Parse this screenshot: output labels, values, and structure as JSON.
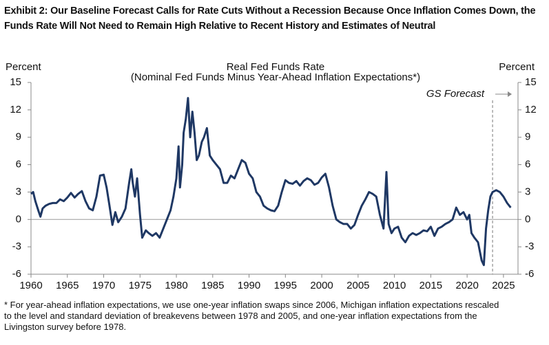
{
  "chart_data": {
    "type": "line",
    "heading": "Exhibit 2: Our Baseline Forecast Calls for Rate Cuts Without a Recession Because Once Inflation Comes Down, the Funds Rate Will Not Need to Remain High Relative to Recent History and Estimates of Neutral",
    "title": "Real Fed Funds Rate",
    "subtitle": "(Nominal Fed Funds Minus Year-Ahead Inflation Expectations*)",
    "ylabel": "Percent",
    "y2label": "Percent",
    "footnote": "* For year-ahead inflation expectations, we use one-year inflation swaps since 2006, Michigan inflation expectations rescaled to the level and standard deviation of breakevens between 1978 and 2005, and one-year inflation expectations from the Livingston survey before 1978.",
    "annotation": {
      "text": "GS Forecast",
      "x": 2023.5
    },
    "xlim": [
      1960,
      2027
    ],
    "xticks": [
      1960,
      1965,
      1970,
      1975,
      1980,
      1985,
      1990,
      1995,
      2000,
      2005,
      2010,
      2015,
      2020,
      2025
    ],
    "ylim": [
      -6,
      15
    ],
    "yticks": [
      -6,
      -3,
      0,
      3,
      6,
      9,
      12,
      15
    ],
    "y2lim": [
      -6,
      15
    ],
    "y2ticks": [
      -6,
      -3,
      0,
      3,
      6,
      9,
      12,
      15
    ],
    "series": [
      {
        "name": "Real Fed Funds Rate",
        "color": "#1f3864",
        "x": [
          1960.0,
          1960.3,
          1960.6,
          1961.0,
          1961.3,
          1961.6,
          1962.0,
          1962.5,
          1963.0,
          1963.5,
          1964.0,
          1964.5,
          1965.0,
          1965.5,
          1966.0,
          1966.5,
          1967.0,
          1967.5,
          1968.0,
          1968.5,
          1969.0,
          1969.5,
          1970.0,
          1970.4,
          1970.8,
          1971.2,
          1971.6,
          1972.0,
          1972.5,
          1973.0,
          1973.5,
          1973.8,
          1974.0,
          1974.3,
          1974.6,
          1975.0,
          1975.3,
          1975.8,
          1976.2,
          1976.7,
          1977.2,
          1977.7,
          1978.2,
          1978.7,
          1979.2,
          1979.6,
          1980.0,
          1980.3,
          1980.5,
          1980.8,
          1981.0,
          1981.3,
          1981.6,
          1981.9,
          1982.2,
          1982.5,
          1982.8,
          1983.1,
          1983.5,
          1983.8,
          1984.2,
          1984.6,
          1985.0,
          1985.5,
          1986.0,
          1986.5,
          1987.0,
          1987.5,
          1988.0,
          1988.5,
          1989.0,
          1989.5,
          1990.0,
          1990.5,
          1991.0,
          1991.5,
          1992.0,
          1992.5,
          1993.0,
          1993.5,
          1994.0,
          1994.5,
          1995.0,
          1995.5,
          1996.0,
          1996.5,
          1997.0,
          1997.5,
          1998.0,
          1998.5,
          1999.0,
          1999.5,
          2000.0,
          2000.5,
          2001.0,
          2001.5,
          2002.0,
          2002.5,
          2003.0,
          2003.5,
          2004.0,
          2004.5,
          2005.0,
          2005.5,
          2006.0,
          2006.5,
          2007.0,
          2007.5,
          2008.0,
          2008.5,
          2008.9,
          2009.2,
          2009.6,
          2010.0,
          2010.5,
          2011.0,
          2011.5,
          2012.0,
          2012.5,
          2013.0,
          2013.5,
          2014.0,
          2014.5,
          2015.0,
          2015.5,
          2016.0,
          2016.5,
          2017.0,
          2017.5,
          2018.0,
          2018.5,
          2019.0,
          2019.5,
          2020.0,
          2020.3,
          2020.6,
          2021.0,
          2021.5,
          2022.0,
          2022.3,
          2022.6,
          2022.9,
          2023.2,
          2023.5,
          2024.0,
          2024.5,
          2025.0,
          2025.5,
          2026.0
        ],
        "values": [
          2.8,
          3.0,
          2.0,
          1.0,
          0.3,
          1.2,
          1.5,
          1.7,
          1.8,
          1.8,
          2.2,
          2.0,
          2.4,
          2.9,
          2.4,
          2.8,
          3.1,
          2.0,
          1.2,
          1.0,
          2.5,
          4.8,
          4.9,
          3.5,
          1.5,
          -0.6,
          0.8,
          -0.3,
          0.3,
          1.2,
          4.0,
          5.5,
          4.0,
          2.5,
          4.5,
          0.5,
          -2.0,
          -1.2,
          -1.5,
          -1.8,
          -1.5,
          -2.0,
          -1.0,
          0.0,
          1.0,
          2.5,
          4.5,
          8.0,
          3.5,
          6.0,
          9.5,
          11.0,
          13.3,
          9.0,
          11.8,
          9.5,
          6.5,
          7.0,
          8.5,
          9.0,
          10.0,
          7.0,
          6.5,
          6.0,
          5.5,
          4.0,
          4.0,
          4.8,
          4.5,
          5.5,
          6.5,
          6.2,
          5.0,
          4.5,
          3.0,
          2.5,
          1.5,
          1.2,
          1.0,
          0.9,
          1.5,
          3.0,
          4.3,
          4.0,
          3.9,
          4.2,
          3.7,
          4.2,
          4.5,
          4.3,
          3.8,
          4.0,
          4.6,
          5.0,
          3.5,
          1.5,
          0.0,
          -0.3,
          -0.5,
          -0.5,
          -1.0,
          -0.6,
          0.5,
          1.5,
          2.2,
          3.0,
          2.8,
          2.5,
          0.5,
          -1.0,
          5.2,
          -0.5,
          -1.5,
          -1.0,
          -0.8,
          -2.0,
          -2.5,
          -1.8,
          -1.5,
          -1.7,
          -1.5,
          -1.2,
          -1.3,
          -0.8,
          -1.8,
          -1.0,
          -0.8,
          -0.5,
          -0.3,
          0.0,
          1.3,
          0.5,
          0.8,
          0.0,
          0.5,
          -1.5,
          -2.0,
          -2.5,
          -4.5,
          -5.0,
          -1.0,
          1.0,
          2.5,
          3.0,
          3.2,
          3.0,
          2.5,
          1.8,
          1.3
        ]
      }
    ]
  }
}
